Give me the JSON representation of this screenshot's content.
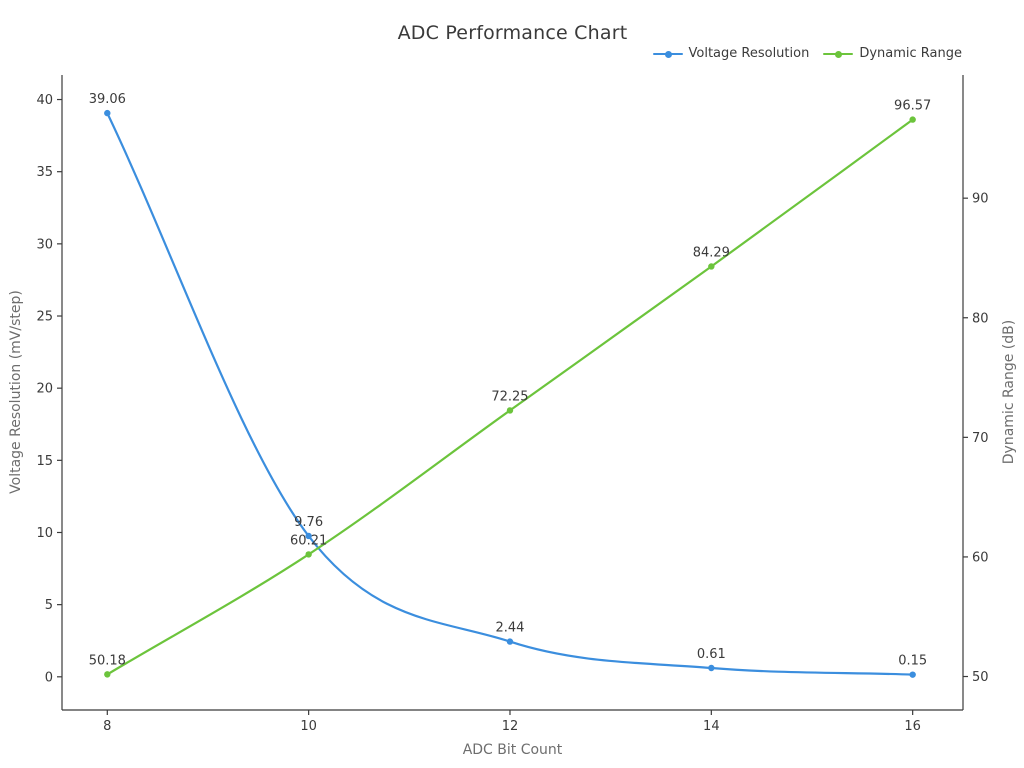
{
  "title": "ADC Performance Chart",
  "legend": {
    "position": "top-right",
    "entries": [
      {
        "label": "Voltage Resolution",
        "color": "#3b8ede"
      },
      {
        "label": "Dynamic Range",
        "color": "#6cc43c"
      }
    ]
  },
  "chart_data": {
    "type": "line",
    "title": "ADC Performance Chart",
    "xlabel": "ADC Bit Count",
    "x": [
      8,
      10,
      12,
      14,
      16
    ],
    "x_ticks": [
      8,
      10,
      12,
      14,
      16
    ],
    "xlim": [
      7.55,
      16.5
    ],
    "grid": false,
    "series": [
      {
        "name": "Voltage Resolution",
        "axis": "left",
        "color": "#3b8ede",
        "values": [
          39.06,
          9.76,
          2.44,
          0.61,
          0.15
        ],
        "point_labels": [
          "39.06",
          "9.76",
          "2.44",
          "0.61",
          "0.15"
        ]
      },
      {
        "name": "Dynamic Range",
        "axis": "right",
        "color": "#6cc43c",
        "values": [
          50.18,
          60.21,
          72.25,
          84.29,
          96.57
        ],
        "point_labels": [
          "50.18",
          "60.21",
          "72.25",
          "84.29",
          "96.57"
        ]
      }
    ],
    "left_axis": {
      "label": "Voltage Resolution (mV/step)",
      "ticks": [
        0,
        5,
        10,
        15,
        20,
        25,
        30,
        35,
        40
      ],
      "range": [
        -2.3,
        41.7
      ]
    },
    "right_axis": {
      "label": "Dynamic Range (dB)",
      "ticks": [
        50,
        60,
        70,
        80,
        90
      ],
      "range": [
        47.2,
        100.3
      ]
    },
    "colors": {
      "spine": "#3b3b3b",
      "tick_label": "#3b3b3b",
      "axis_label": "#6e6e6e",
      "title": "#3a3a3a",
      "annotation": "#3b3b3b",
      "background": "#ffffff"
    }
  }
}
